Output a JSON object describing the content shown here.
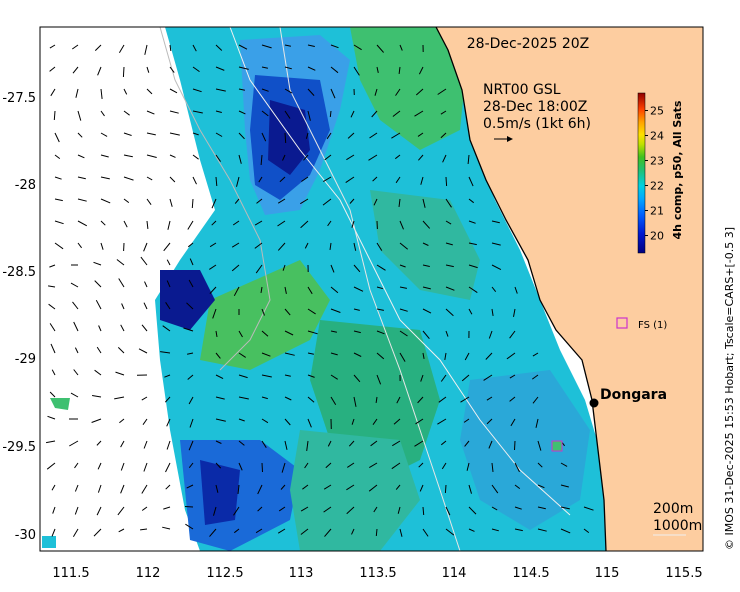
{
  "map": {
    "timestamp": "28-Dec-2025 20Z",
    "current_product": {
      "line1": "NRT00 GSL",
      "line2": "28-Dec 18:00Z",
      "line3": "0.5m/s (1kt 6h)"
    },
    "place_label": "Dongara",
    "fs_label": "FS (1)",
    "depth_labels": [
      "200m",
      "1000m"
    ],
    "credit": "© IMOS 31-Dec-2025 15:53 Hobart; Tscale=CARS+[-0.5 3]",
    "colorbar": {
      "label": "4h comp, p50, All Sats",
      "ticks": [
        "20",
        "21",
        "22",
        "23",
        "24",
        "25"
      ],
      "min": 19.3,
      "max": 25.7
    },
    "axes": {
      "x_ticks": [
        "111.5",
        "112",
        "112.5",
        "113",
        "113.5",
        "114",
        "114.5",
        "115",
        "115.5"
      ],
      "y_ticks": [
        "-27.5",
        "-28",
        "-28.5",
        "-29",
        "-29.5",
        "-30"
      ]
    },
    "colors": {
      "land": "#fdcda0",
      "no_data": "#ffffff",
      "fs_marker": "#cc33cc",
      "coast": "#000000"
    }
  }
}
